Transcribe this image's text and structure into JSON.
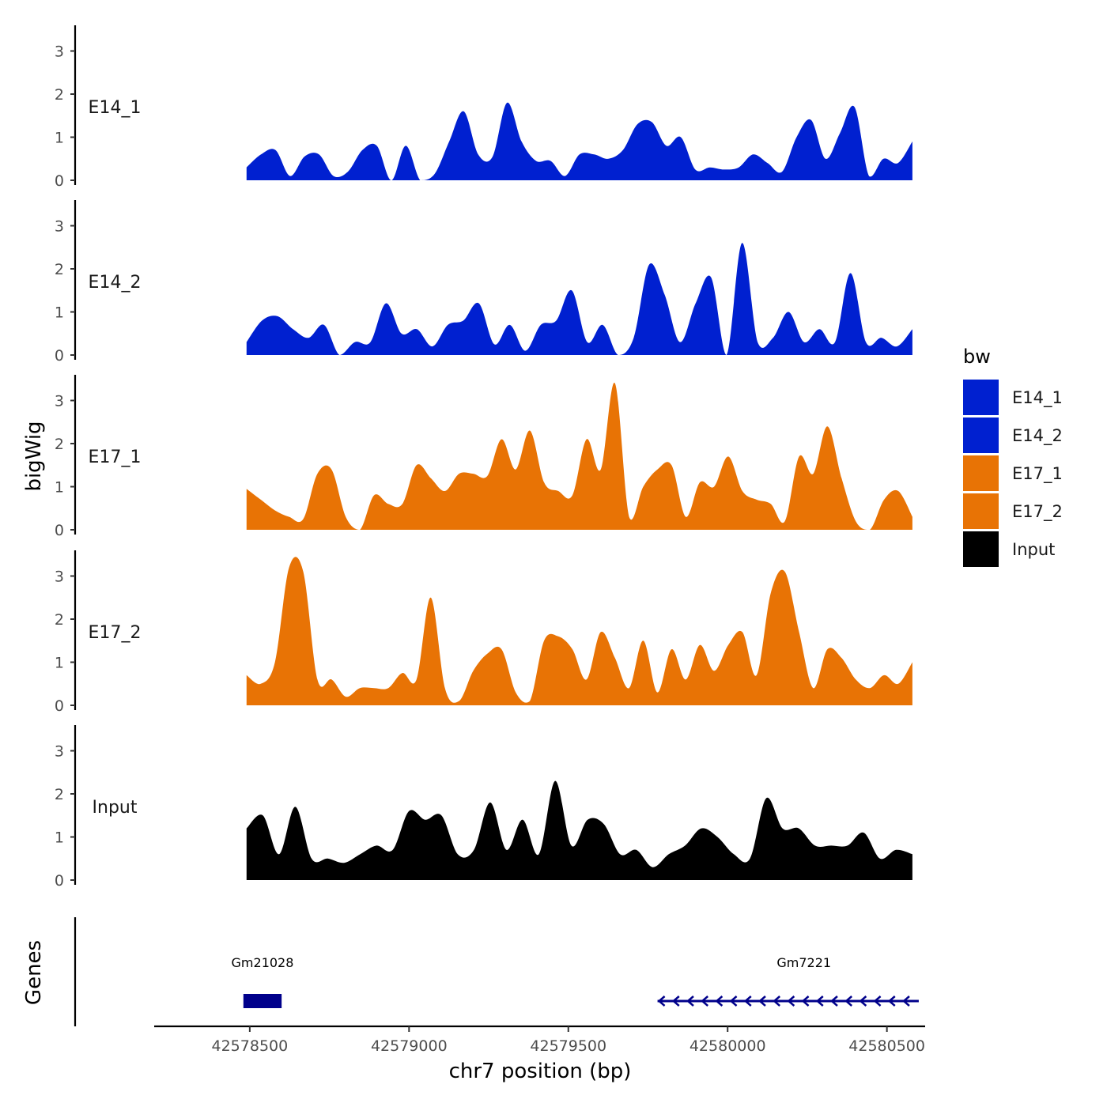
{
  "chart_data": {
    "type": "area",
    "ylabel": "bigWig",
    "xlabel": "chr7 position (bp)",
    "xlim": [
      42578200,
      42580620
    ],
    "x_ticks": [
      42578500,
      42579000,
      42579500,
      42580000,
      42580500
    ],
    "x_tick_labels": [
      "42578500",
      "42579000",
      "42579500",
      "42580000",
      "42580500"
    ],
    "ylim": [
      0,
      3.6
    ],
    "y_ticks": [
      0,
      1,
      2,
      3
    ],
    "y_tick_labels": [
      "0",
      "1",
      "2",
      "3"
    ],
    "x_start": 42578490,
    "x_step": 50,
    "legend": {
      "title": "bw",
      "entries": [
        {
          "label": "E14_1",
          "color": "#0020d0"
        },
        {
          "label": "E14_2",
          "color": "#0020d0"
        },
        {
          "label": "E17_1",
          "color": "#e87305"
        },
        {
          "label": "E17_2",
          "color": "#e87305"
        },
        {
          "label": "Input",
          "color": "#000000"
        }
      ]
    },
    "tracks": [
      {
        "name": "E14_1",
        "color": "#0020d0",
        "values": [
          0.3,
          0.6,
          0.7,
          0.1,
          0.55,
          0.6,
          0.1,
          0.2,
          0.7,
          0.8,
          0,
          0.8,
          0,
          0.15,
          0.9,
          1.6,
          0.6,
          0.55,
          1.8,
          0.9,
          0.45,
          0.45,
          0.1,
          0.6,
          0.6,
          0.5,
          0.7,
          1.3,
          1.35,
          0.8,
          1.0,
          0.25,
          0.3,
          0.25,
          0.3,
          0.6,
          0.4,
          0.2,
          1.0,
          1.4,
          0.5,
          1.1,
          1.7,
          0.1,
          0.5,
          0.4,
          0.9
        ]
      },
      {
        "name": "E14_2",
        "color": "#0020d0",
        "values": [
          0.3,
          0.8,
          0.9,
          0.6,
          0.4,
          0.7,
          0,
          0.3,
          0.3,
          1.2,
          0.5,
          0.6,
          0.2,
          0.7,
          0.8,
          1.2,
          0.25,
          0.7,
          0.1,
          0.7,
          0.8,
          1.5,
          0.3,
          0.7,
          0,
          0.4,
          2.1,
          1.4,
          0.3,
          1.2,
          1.8,
          0,
          2.6,
          0.3,
          0.4,
          1.0,
          0.3,
          0.6,
          0.3,
          1.9,
          0.3,
          0.4,
          0.2,
          0.6
        ]
      },
      {
        "name": "E17_1",
        "color": "#e87305",
        "values": [
          0.95,
          0.7,
          0.45,
          0.3,
          0.25,
          1.3,
          1.4,
          0.3,
          0,
          0.8,
          0.6,
          0.6,
          1.5,
          1.2,
          0.9,
          1.3,
          1.3,
          1.25,
          2.1,
          1.4,
          2.3,
          1.1,
          0.9,
          0.8,
          2.1,
          1.4,
          3.4,
          0.3,
          1.0,
          1.4,
          1.5,
          0.3,
          1.1,
          1.0,
          1.7,
          0.9,
          0.7,
          0.6,
          0.2,
          1.7,
          1.3,
          2.4,
          1.2,
          0.2,
          0,
          0.7,
          0.9,
          0.3
        ]
      },
      {
        "name": "E17_2",
        "color": "#e87305",
        "values": [
          0.7,
          0.5,
          1.0,
          3.2,
          3.1,
          0.6,
          0.6,
          0.2,
          0.4,
          0.4,
          0.4,
          0.75,
          0.6,
          2.5,
          0.4,
          0.1,
          0.8,
          1.2,
          1.3,
          0.3,
          0.1,
          1.5,
          1.6,
          1.3,
          0.6,
          1.7,
          1.1,
          0.4,
          1.5,
          0.3,
          1.3,
          0.6,
          1.4,
          0.8,
          1.4,
          1.7,
          0.7,
          2.6,
          3.1,
          1.7,
          0.4,
          1.3,
          1.1,
          0.6,
          0.4,
          0.7,
          0.5,
          1.0
        ]
      },
      {
        "name": "Input",
        "color": "#000000",
        "values": [
          1.2,
          1.5,
          0.6,
          1.7,
          0.5,
          0.5,
          0.4,
          0.6,
          0.8,
          0.7,
          1.6,
          1.4,
          1.5,
          0.6,
          0.7,
          1.8,
          0.7,
          1.4,
          0.6,
          2.3,
          0.8,
          1.4,
          1.3,
          0.6,
          0.7,
          0.3,
          0.6,
          0.8,
          1.2,
          1.0,
          0.6,
          0.5,
          1.9,
          1.2,
          1.2,
          0.8,
          0.8,
          0.8,
          1.1,
          0.5,
          0.7,
          0.6
        ]
      }
    ],
    "genes_label": "Genes",
    "genes": [
      {
        "name": "Gm21028",
        "start": 42578480,
        "end": 42578600,
        "strand": "+",
        "color": "#00008b"
      },
      {
        "name": "Gm7221",
        "start": 42579780,
        "end": 42580600,
        "strand": "-",
        "color": "#00008b"
      }
    ]
  }
}
